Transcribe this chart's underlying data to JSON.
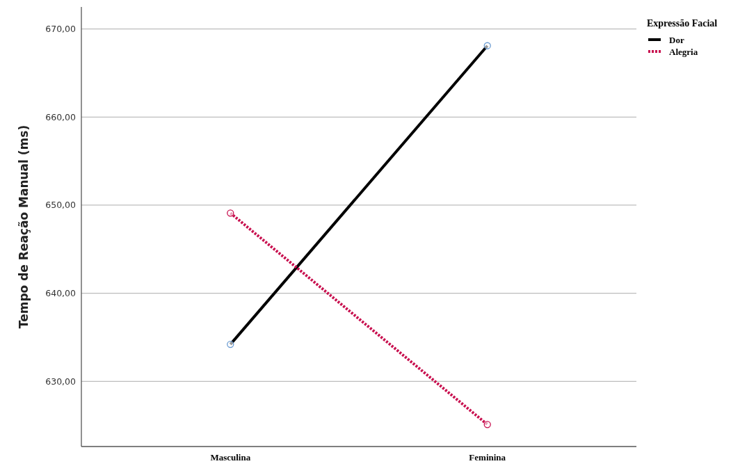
{
  "chart_data": {
    "type": "line",
    "ylabel": "Tempo de Reação Manual (ms)",
    "legend_title": "Expressão Facial",
    "categories": [
      "Masculina",
      "Feminina"
    ],
    "series": [
      {
        "name": "Dor",
        "color": "#000000",
        "values": [
          634.2,
          668.1
        ],
        "line_style": "solid"
      },
      {
        "name": "Alegria",
        "color": "#c8104f",
        "values": [
          649.1,
          625.1
        ],
        "line_style": "dotted"
      }
    ],
    "ylim": [
      622.6,
      672.5
    ],
    "yticks": [
      {
        "value": 630,
        "label": "630,00"
      },
      {
        "value": 640,
        "label": "640,00"
      },
      {
        "value": 650,
        "label": "650,00"
      },
      {
        "value": 660,
        "label": "660,00"
      },
      {
        "value": 670,
        "label": "670,00"
      }
    ],
    "grid": "y",
    "legend": "top right",
    "marker": "circle"
  }
}
